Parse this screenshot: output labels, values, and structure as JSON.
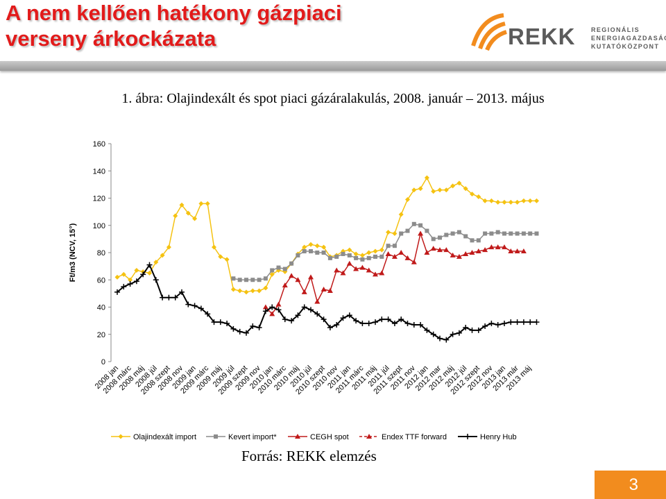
{
  "slide": {
    "title": "A nem kellően hatékony gázpiaci verseny árkockázata",
    "figure_caption": "1. ábra: Olajindexált és spot piaci gázáralakulás, 2008. január – 2013. május",
    "source": "Forrás: REKK elemzés",
    "page_number": "3"
  },
  "logo": {
    "name": "REKK",
    "line1": "REGIONÁLIS",
    "line2": "ENERGIAGAZDASÁGI",
    "line3": "KUTATÓKÖZPONT",
    "colors": {
      "orange": "#f28c1e",
      "gray": "#5b5b5b"
    }
  },
  "colors": {
    "title": "#e21b1b",
    "page_box": "#f28c1e"
  },
  "chart_data": {
    "type": "line",
    "ylabel": "Ft/m3 (NCV, 15°)",
    "ylim": [
      0,
      160
    ],
    "yticks": [
      0,
      20,
      40,
      60,
      80,
      100,
      120,
      140,
      160
    ],
    "grid": false,
    "legend_position": "bottom",
    "xtick_labels": [
      "2008 jan",
      "2008 márc",
      "2008 máj",
      "2008 júl",
      "2008 szept",
      "2008 nov",
      "2009 jan",
      "2009 márc",
      "2009 máj",
      "2009 júl",
      "2009 szept",
      "2009 nov",
      "2010 jan",
      "2010 márc",
      "2010 máj",
      "2010 júl",
      "2010 szept",
      "2010 nov",
      "2011 jan",
      "2011 márc",
      "2011 máj",
      "2011 júl",
      "2011 szept",
      "2011 nov",
      "2012 jan",
      "2012 mar",
      "2012 máj",
      "2012 júl",
      "2012 szept",
      "2012 nov",
      "2013 jan",
      "2013 már",
      "2013 máj"
    ],
    "series": [
      {
        "name": "Olajindexált import",
        "color": "#f5c211",
        "marker": "diamond",
        "dashed": false,
        "start": 0,
        "values": [
          62,
          64,
          60,
          67,
          66,
          65,
          73,
          78,
          84,
          107,
          115,
          109,
          105,
          116,
          116,
          84,
          77,
          75,
          53,
          52,
          51,
          52,
          52,
          54,
          64,
          67,
          66,
          72,
          79,
          84,
          86,
          85,
          84,
          77,
          78,
          81,
          82,
          79,
          78,
          80,
          81,
          82,
          95,
          94,
          108,
          119,
          126,
          127,
          135,
          125,
          126,
          126,
          129,
          131,
          127,
          123,
          121,
          118,
          118,
          117,
          117,
          117,
          117,
          118,
          118,
          118
        ]
      },
      {
        "name": "Kevert import*",
        "color": "#8c8c8c",
        "marker": "square",
        "dashed": false,
        "start": 18,
        "values": [
          61,
          60,
          60,
          60,
          60,
          61,
          67,
          69,
          68,
          72,
          78,
          81,
          81,
          80,
          80,
          76,
          77,
          79,
          78,
          76,
          75,
          76,
          77,
          77,
          85,
          85,
          94,
          96,
          101,
          100,
          96,
          90,
          91,
          93,
          94,
          95,
          92,
          89,
          89,
          94,
          94,
          95,
          94,
          94,
          94,
          94,
          94,
          94
        ]
      },
      {
        "name": "CEGH spot",
        "color": "#c01a1a",
        "marker": "triangle",
        "dashed": false,
        "start": 23,
        "values": [
          40,
          35,
          42,
          56,
          63,
          60,
          51,
          62,
          44,
          53,
          52,
          67,
          65,
          72,
          68,
          69,
          67,
          64,
          65,
          79,
          77,
          80,
          76,
          73,
          94,
          80,
          83,
          82,
          82,
          78,
          77,
          79,
          80,
          81,
          82,
          84,
          84,
          84,
          81,
          81,
          81
        ]
      },
      {
        "name": "Endex TTF forward",
        "color": "#c01a1a",
        "marker": "none",
        "dashed": true,
        "start": 0,
        "values": []
      },
      {
        "name": "Henry Hub",
        "color": "#000000",
        "marker": "cross",
        "dashed": false,
        "start": 0,
        "values": [
          51,
          55,
          57,
          59,
          64,
          71,
          60,
          47,
          47,
          47,
          51,
          42,
          41,
          39,
          35,
          29,
          29,
          28,
          24,
          22,
          21,
          26,
          25,
          37,
          40,
          38,
          31,
          30,
          34,
          40,
          38,
          35,
          31,
          25,
          27,
          32,
          34,
          30,
          28,
          28,
          29,
          31,
          31,
          28,
          31,
          28,
          27,
          27,
          23,
          20,
          17,
          16,
          20,
          21,
          25,
          23,
          23,
          26,
          28,
          27,
          28,
          29,
          29,
          29,
          29,
          29
        ]
      }
    ]
  }
}
